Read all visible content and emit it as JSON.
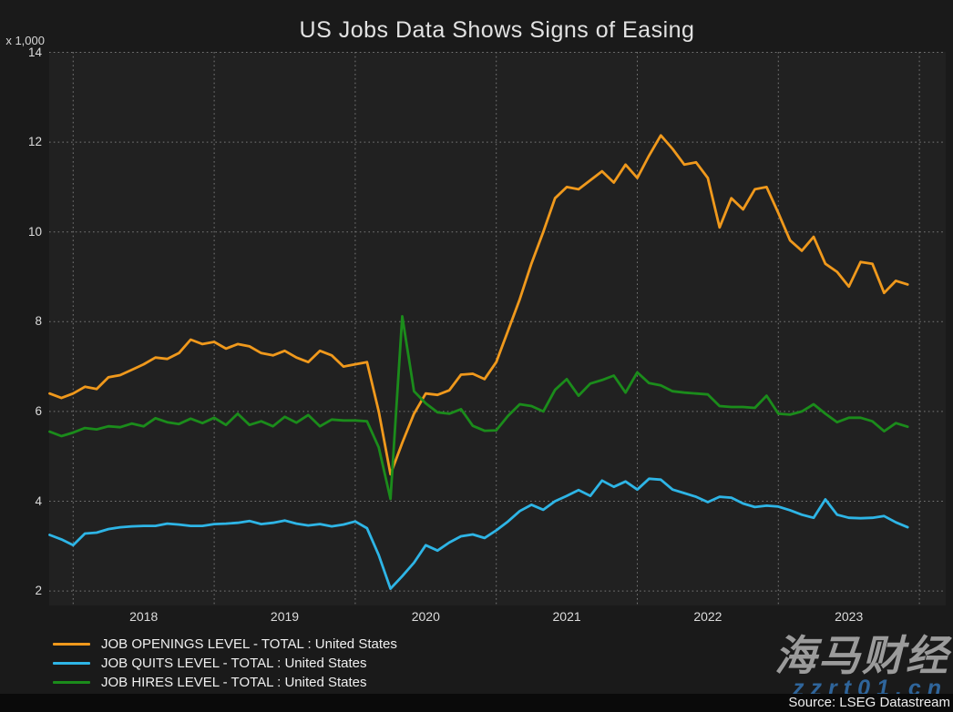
{
  "title": "US Jobs Data Shows Signs of Easing",
  "source": "Source: LSEG Datastream",
  "watermark": {
    "text": "海马财经",
    "url": "zzrt01.cn"
  },
  "colors": {
    "background": "#1a1a1a",
    "plot_background": "#212121",
    "grid": "#787878",
    "openings": "#f0991c",
    "quits": "#2eb5e6",
    "hires": "#1b8c1b"
  },
  "chart_data": {
    "type": "line",
    "title": "US Jobs Data Shows Signs of Easing",
    "ylabel": "x 1,000",
    "xlabel": "",
    "ylim": [
      2,
      14
    ],
    "yticks": [
      2,
      4,
      6,
      8,
      10,
      12,
      14
    ],
    "grid": "dotted",
    "legend_position": "bottom-left",
    "x_start": "2017-11",
    "x_end": "2023-12",
    "x_frequency": "monthly",
    "x_tick_labels": [
      "2018",
      "2019",
      "2020",
      "2021",
      "2022",
      "2023"
    ],
    "series": [
      {
        "name": "JOB OPENINGS LEVEL - TOTAL : United States",
        "color": "#f0991c",
        "values": [
          6.4,
          6.3,
          6.4,
          6.55,
          6.5,
          6.76,
          6.81,
          6.93,
          7.05,
          7.2,
          7.17,
          7.3,
          7.6,
          7.5,
          7.55,
          7.4,
          7.5,
          7.45,
          7.3,
          7.25,
          7.35,
          7.2,
          7.1,
          7.35,
          7.25,
          7.0,
          7.05,
          7.1,
          6.0,
          4.6,
          5.3,
          5.95,
          6.4,
          6.37,
          6.47,
          6.82,
          6.84,
          6.72,
          7.1,
          7.8,
          8.5,
          9.3,
          10.0,
          10.75,
          11.0,
          10.95,
          11.15,
          11.35,
          11.1,
          11.5,
          11.2,
          11.7,
          12.15,
          11.85,
          11.5,
          11.55,
          11.2,
          10.1,
          10.75,
          10.5,
          10.95,
          11.0,
          10.42,
          9.81,
          9.58,
          9.89,
          9.29,
          9.11,
          8.78,
          9.33,
          9.29,
          8.64,
          8.91,
          8.83
        ]
      },
      {
        "name": "JOB QUITS LEVEL - TOTAL : United States",
        "color": "#2eb5e6",
        "values": [
          3.25,
          3.15,
          3.02,
          3.28,
          3.3,
          3.38,
          3.42,
          3.44,
          3.45,
          3.45,
          3.5,
          3.48,
          3.45,
          3.45,
          3.49,
          3.5,
          3.52,
          3.56,
          3.49,
          3.52,
          3.57,
          3.5,
          3.46,
          3.49,
          3.44,
          3.48,
          3.55,
          3.4,
          2.8,
          2.05,
          2.33,
          2.63,
          3.02,
          2.9,
          3.08,
          3.22,
          3.26,
          3.18,
          3.35,
          3.55,
          3.78,
          3.92,
          3.81,
          4.0,
          4.12,
          4.25,
          4.12,
          4.46,
          4.32,
          4.44,
          4.26,
          4.5,
          4.48,
          4.26,
          4.18,
          4.1,
          3.98,
          4.1,
          4.08,
          3.95,
          3.87,
          3.9,
          3.88,
          3.8,
          3.7,
          3.63,
          4.04,
          3.7,
          3.63,
          3.62,
          3.63,
          3.67,
          3.53,
          3.42
        ]
      },
      {
        "name": "JOB HIRES LEVEL - TOTAL : United States",
        "color": "#1b8c1b",
        "values": [
          5.55,
          5.45,
          5.53,
          5.63,
          5.6,
          5.67,
          5.65,
          5.73,
          5.67,
          5.85,
          5.76,
          5.72,
          5.84,
          5.74,
          5.86,
          5.7,
          5.95,
          5.7,
          5.78,
          5.67,
          5.88,
          5.75,
          5.92,
          5.67,
          5.82,
          5.8,
          5.8,
          5.78,
          5.2,
          4.05,
          8.12,
          6.45,
          6.18,
          5.98,
          5.95,
          6.05,
          5.68,
          5.57,
          5.58,
          5.9,
          6.16,
          6.12,
          6.0,
          6.48,
          6.72,
          6.35,
          6.62,
          6.7,
          6.8,
          6.42,
          6.87,
          6.63,
          6.58,
          6.45,
          6.42,
          6.4,
          6.38,
          6.12,
          6.1,
          6.1,
          6.08,
          6.35,
          5.95,
          5.93,
          6.0,
          6.16,
          5.95,
          5.76,
          5.86,
          5.86,
          5.78,
          5.56,
          5.74,
          5.66
        ]
      }
    ]
  }
}
